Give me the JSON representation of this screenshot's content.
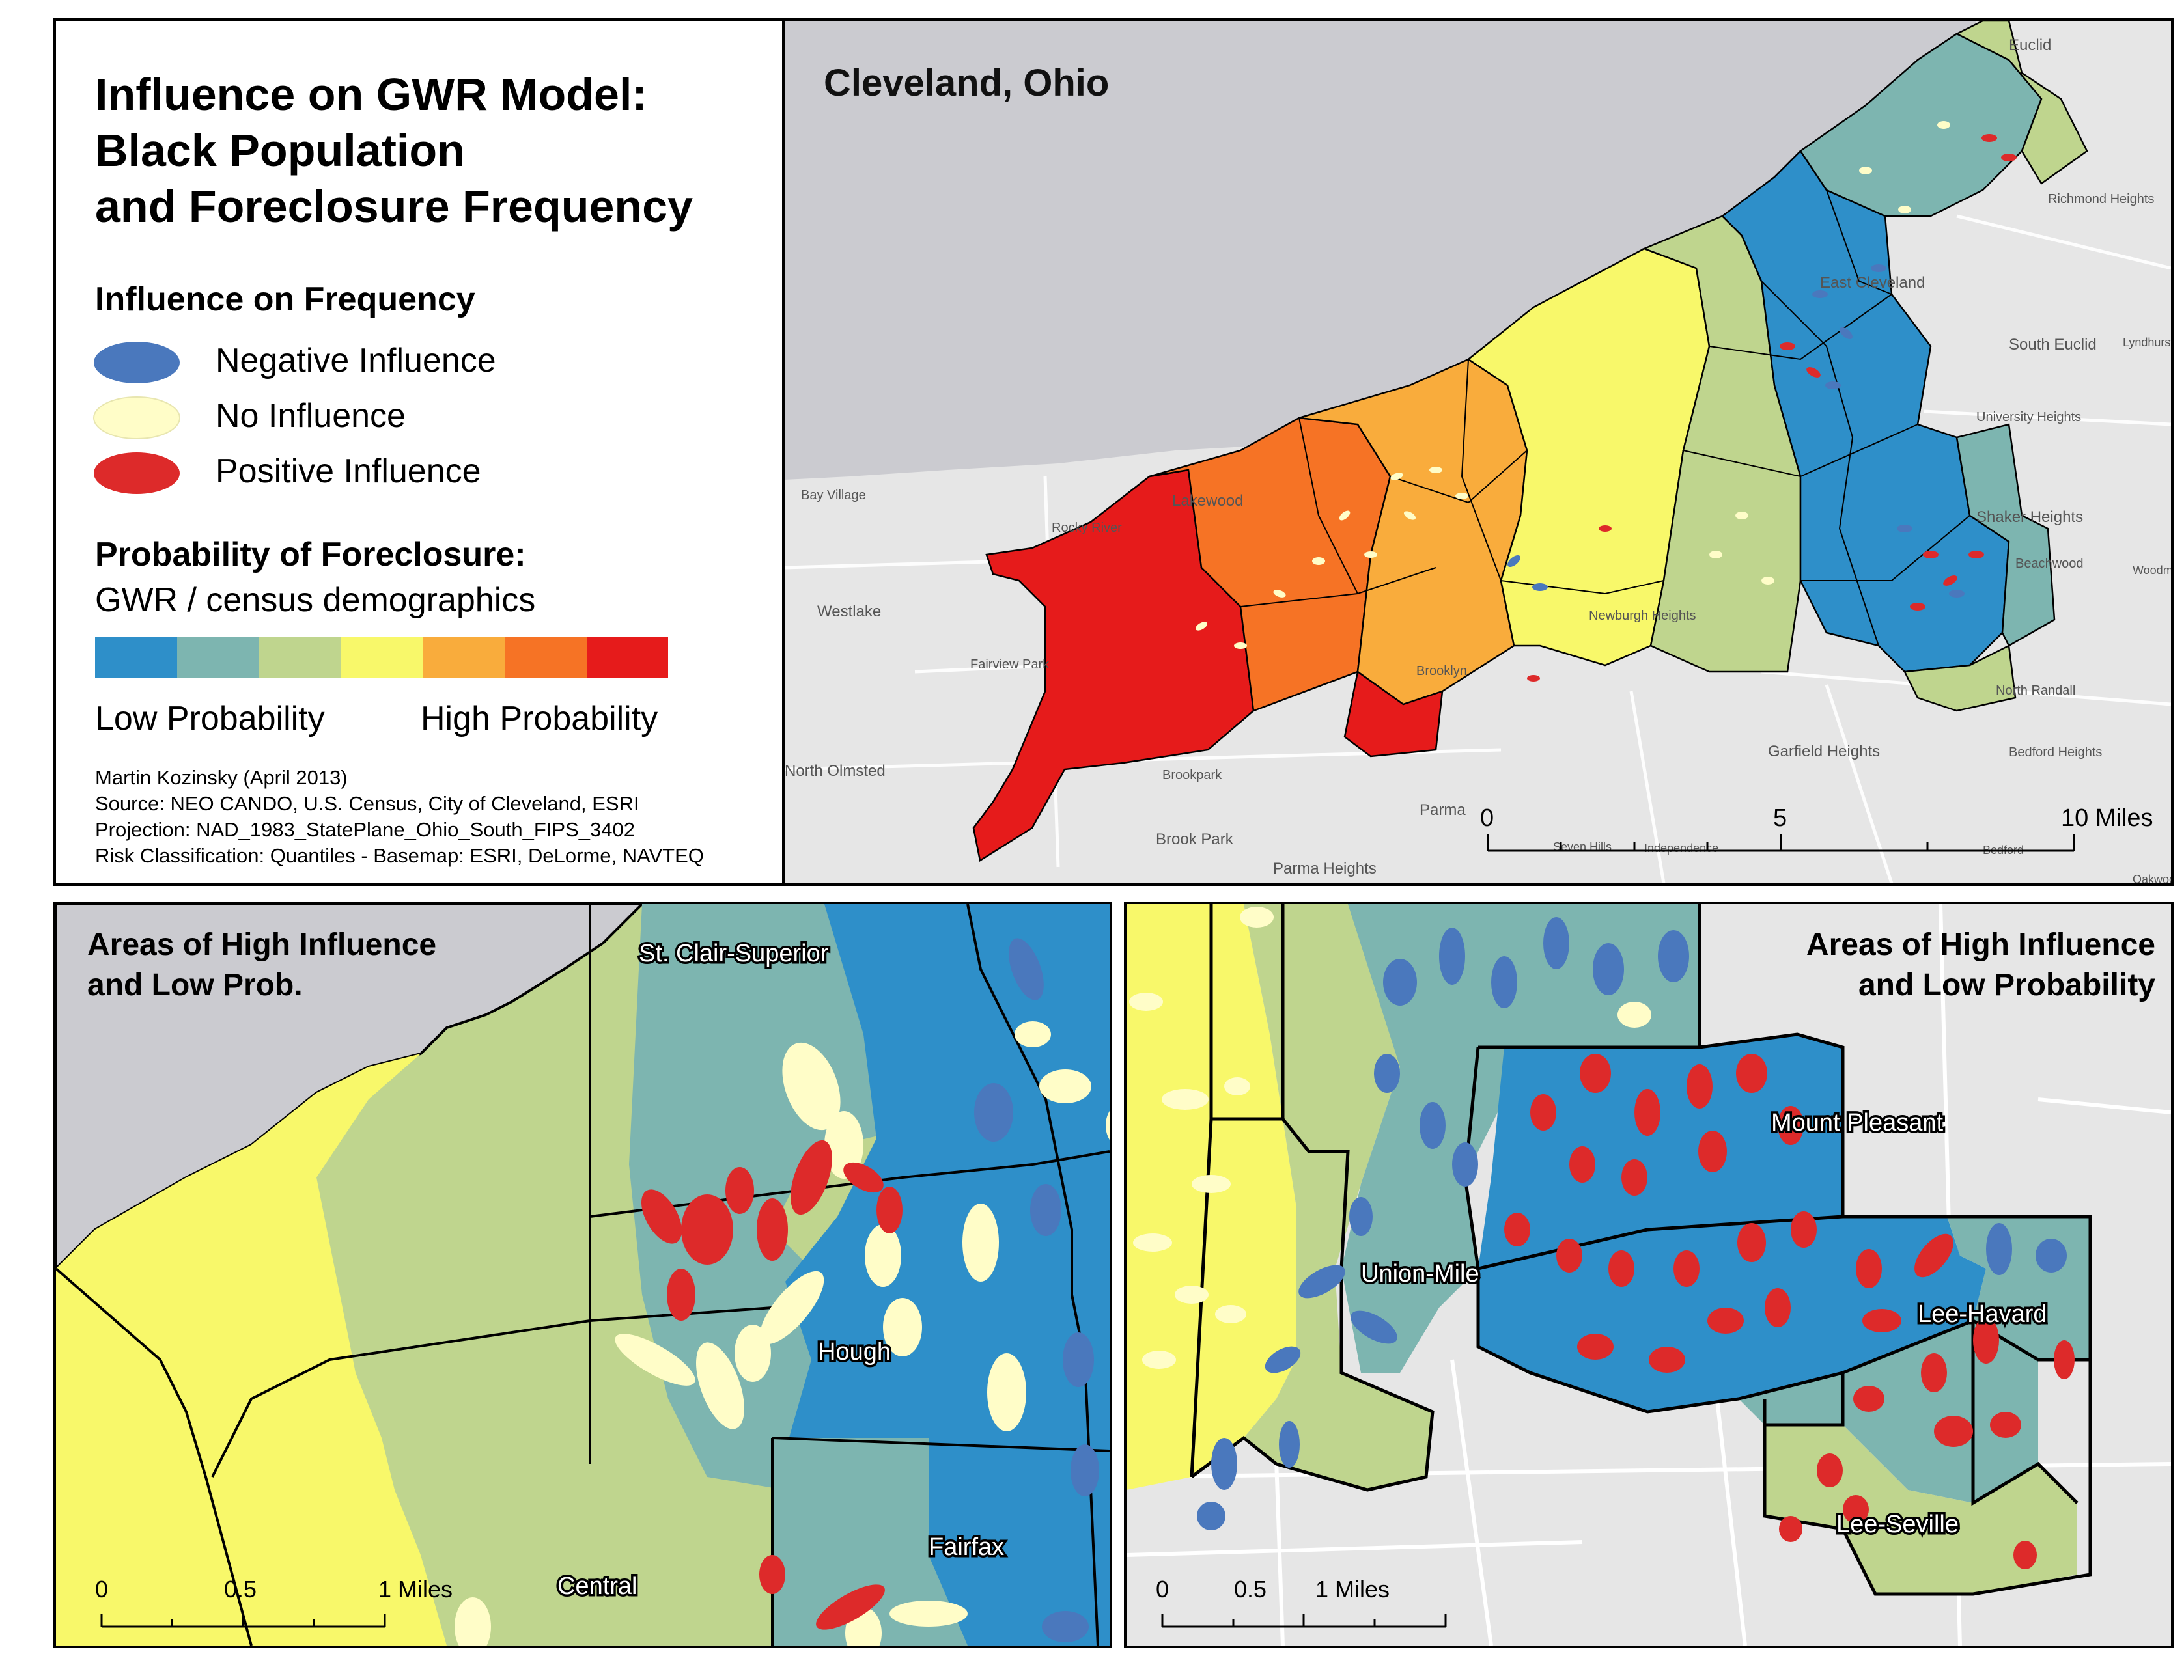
{
  "legend": {
    "title_lines": [
      "Influence on GWR Model:",
      "Black Population",
      "and Foreclosure Frequency"
    ],
    "influence_heading": "Influence on Frequency",
    "influence_items": [
      {
        "label": "Negative Influence",
        "color": "#4a78bd"
      },
      {
        "label": "No Influence",
        "color": "#fffdc8"
      },
      {
        "label": "Positive Influence",
        "color": "#dd2a2a"
      }
    ],
    "prob_heading": "Probability of Foreclosure:",
    "prob_subheading": "GWR / census demographics",
    "ramp_colors": [
      "#2e8fc9",
      "#7db5b0",
      "#bfd58e",
      "#f8f86a",
      "#f9ac3c",
      "#f67325",
      "#e61b1b"
    ],
    "low_label": "Low Probability",
    "high_label": "High Probability",
    "credits": [
      "Martin Kozinsky (April 2013)",
      "Source: NEO CANDO, U.S. Census, City of Cleveland, ESRI",
      "Projection: NAD_1983_StatePlane_Ohio_South_FIPS_3402",
      "Risk Classification: Quantiles - Basemap: ESRI, DeLorme, NAVTEQ"
    ]
  },
  "main_map": {
    "title": "Cleveland, Ohio",
    "places": [
      "Euclid",
      "Richmond Heights",
      "East Cleveland",
      "South Euclid",
      "Lyndhurst",
      "University Heights",
      "Shaker Heights",
      "Beachwood",
      "Woodmere",
      "Bay Village",
      "Lakewood",
      "Rocky River",
      "Westlake",
      "Fairview Park",
      "Newburgh Heights",
      "Brooklyn",
      "North Randall",
      "Garfield Heights",
      "Bedford Heights",
      "North Olmsted",
      "Brookpark",
      "Parma",
      "Brook Park",
      "Parma Heights",
      "Seven Hills",
      "Independence",
      "Bedford",
      "Oakwood"
    ],
    "scale": {
      "labels": [
        "0",
        "5",
        "10 Miles"
      ]
    }
  },
  "inset_left": {
    "title_lines": [
      "Areas of High Influence",
      "and Low Prob."
    ],
    "neighborhoods": [
      "St. Clair-Superior",
      "Hough",
      "Fairfax",
      "Central"
    ],
    "scale": {
      "labels": [
        "0",
        "0.5",
        "1 Miles"
      ]
    }
  },
  "inset_right": {
    "title_lines": [
      "Areas of High Influence",
      "and Low Probability"
    ],
    "neighborhoods": [
      "Mount Pleasant",
      "Union-Mile",
      "Lee-Havard",
      "Lee-Seville"
    ],
    "scale": {
      "labels": [
        "0",
        "0.5",
        "1 Miles"
      ]
    }
  }
}
